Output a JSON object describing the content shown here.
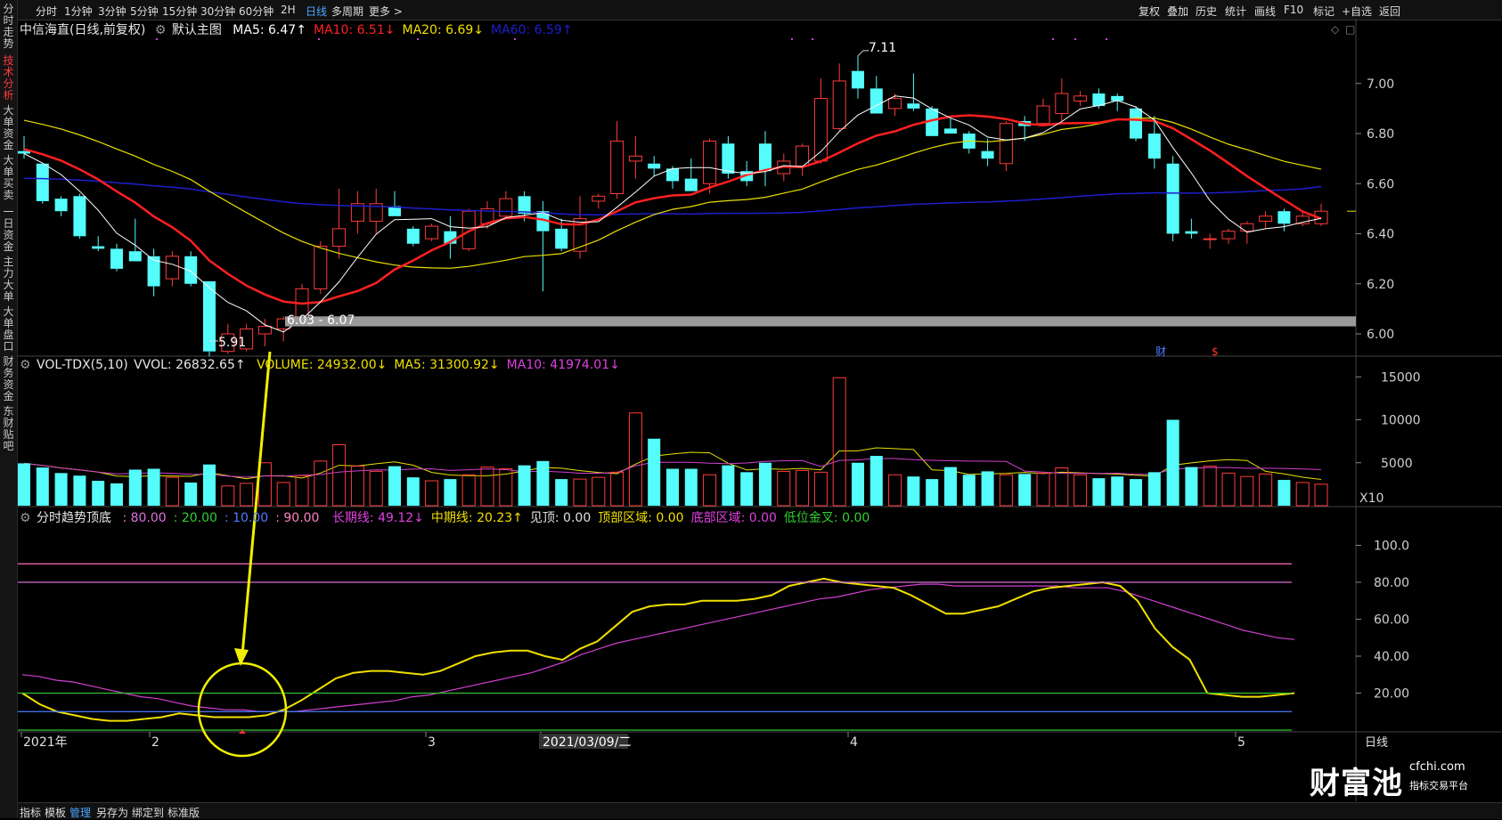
{
  "sidebar": {
    "tabs": [
      {
        "label": "分时走势",
        "active": false
      },
      {
        "label": "技术分析",
        "active": true
      },
      {
        "label": "大单资金",
        "active": false
      },
      {
        "label": "大单买卖",
        "active": false
      },
      {
        "label": "一日资金",
        "active": false
      },
      {
        "label": "主力大单",
        "active": false
      },
      {
        "label": "大单盘口",
        "active": false
      },
      {
        "label": "财务资金",
        "active": false
      },
      {
        "label": "东财贴吧",
        "active": false
      }
    ]
  },
  "toolbar": {
    "periods": [
      "分时",
      "1分钟",
      "3分钟",
      "5分钟",
      "15分钟",
      "30分钟",
      "60分钟",
      "2H",
      "日线",
      "多周期",
      "更多 >"
    ],
    "active_period": "日线",
    "right_buttons": [
      "复权",
      "叠加",
      "历史",
      "统计",
      "画线",
      "F10",
      "标记",
      "+自选",
      "返回"
    ]
  },
  "main_panel": {
    "stock": "中信海直(日线,前复权)",
    "template": "默认主图",
    "ma_labels": [
      {
        "text": "MA5: 6.47↑",
        "color": "#ffffff"
      },
      {
        "text": "MA10: 6.51↓",
        "color": "#ff2020"
      },
      {
        "text": "MA20: 6.69↓",
        "color": "#f0e000"
      },
      {
        "text": "MA60: 6.59↑",
        "color": "#1e1ecc"
      }
    ],
    "price_axis": [
      "7.00",
      "6.80",
      "6.60",
      "6.40",
      "6.20",
      "6.00"
    ],
    "high_label": "7.11",
    "low_label": "5.91",
    "range_label": "6.03 - 6.07",
    "markers": [
      {
        "text": "财",
        "color": "#4d7dff"
      },
      {
        "text": "$",
        "color": "#ff3030"
      }
    ]
  },
  "volume_panel": {
    "name": "VOL-TDX(5,10)",
    "vvol": "VVOL: 26832.65↑",
    "labels": [
      {
        "text": "VOLUME: 24932.00↓",
        "color": "#f0e000"
      },
      {
        "text": "MA5: 31300.92↓",
        "color": "#f0e000"
      },
      {
        "text": "MA10: 41974.01↓",
        "color": "#e040e0"
      }
    ],
    "axis": [
      "15000",
      "10000",
      "5000"
    ],
    "unit": "X10"
  },
  "indicator_panel": {
    "name": "分时趋势顶底",
    "params": [
      {
        "text": ": 80.00",
        "color": "#e070e0"
      },
      {
        "text": ": 20.00",
        "color": "#30d030"
      },
      {
        "text": ": 10.00",
        "color": "#4d7dff"
      },
      {
        "text": ": 90.00",
        "color": "#ff80c0"
      }
    ],
    "labels": [
      {
        "text": "长期线: 49.12↓",
        "color": "#e040e0"
      },
      {
        "text": "中期线: 20.23↑",
        "color": "#f0e000"
      },
      {
        "text": "见顶: 0.00",
        "color": "#e0e0e0"
      },
      {
        "text": "顶部区域: 0.00",
        "color": "#f0e000"
      },
      {
        "text": "底部区域: 0.00",
        "color": "#e040e0"
      },
      {
        "text": "低位金叉: 0.00",
        "color": "#30d030"
      }
    ],
    "axis": [
      "100.0",
      "80.00",
      "60.00",
      "40.00",
      "20.00"
    ]
  },
  "date_axis": {
    "labels": [
      "2021年",
      "2",
      "3",
      "2021/03/09/二",
      "4",
      "5"
    ],
    "period": "日线"
  },
  "bottombar": {
    "items": [
      "指标",
      "模板",
      "管理",
      "另存为",
      "绑定到",
      "标准版"
    ],
    "active": "管理"
  },
  "watermark": {
    "brand": "财富池",
    "site": "cfchi.com",
    "tagline": "指标交易平台"
  },
  "chart_data": {
    "type": "candlestick",
    "candles": [
      {
        "o": 6.73,
        "h": 6.79,
        "l": 6.7,
        "c": 6.72
      },
      {
        "o": 6.68,
        "h": 6.68,
        "l": 6.52,
        "c": 6.53
      },
      {
        "o": 6.54,
        "h": 6.55,
        "l": 6.47,
        "c": 6.49
      },
      {
        "o": 6.55,
        "h": 6.56,
        "l": 6.38,
        "c": 6.39
      },
      {
        "o": 6.35,
        "h": 6.39,
        "l": 6.33,
        "c": 6.34
      },
      {
        "o": 6.34,
        "h": 6.36,
        "l": 6.25,
        "c": 6.26
      },
      {
        "o": 6.33,
        "h": 6.46,
        "l": 6.29,
        "c": 6.29
      },
      {
        "o": 6.31,
        "h": 6.34,
        "l": 6.15,
        "c": 6.19
      },
      {
        "o": 6.22,
        "h": 6.33,
        "l": 6.19,
        "c": 6.31
      },
      {
        "o": 6.31,
        "h": 6.33,
        "l": 6.19,
        "c": 6.2
      },
      {
        "o": 6.21,
        "h": 6.21,
        "l": 5.91,
        "c": 5.93
      },
      {
        "o": 5.93,
        "h": 6.04,
        "l": 5.92,
        "c": 6.0
      },
      {
        "o": 5.94,
        "h": 6.04,
        "l": 5.93,
        "c": 6.02
      },
      {
        "o": 6.0,
        "h": 6.06,
        "l": 5.95,
        "c": 6.03
      },
      {
        "o": 6.02,
        "h": 6.07,
        "l": 5.97,
        "c": 6.06
      },
      {
        "o": 6.06,
        "h": 6.2,
        "l": 6.04,
        "c": 6.18
      },
      {
        "o": 6.18,
        "h": 6.37,
        "l": 6.16,
        "c": 6.35
      },
      {
        "o": 6.35,
        "h": 6.58,
        "l": 6.3,
        "c": 6.42
      },
      {
        "o": 6.45,
        "h": 6.57,
        "l": 6.4,
        "c": 6.52
      },
      {
        "o": 6.45,
        "h": 6.58,
        "l": 6.4,
        "c": 6.52
      },
      {
        "o": 6.51,
        "h": 6.57,
        "l": 6.47,
        "c": 6.47
      },
      {
        "o": 6.42,
        "h": 6.43,
        "l": 6.35,
        "c": 6.36
      },
      {
        "o": 6.38,
        "h": 6.44,
        "l": 6.37,
        "c": 6.43
      },
      {
        "o": 6.41,
        "h": 6.47,
        "l": 6.3,
        "c": 6.36
      },
      {
        "o": 6.34,
        "h": 6.5,
        "l": 6.33,
        "c": 6.49
      },
      {
        "o": 6.44,
        "h": 6.53,
        "l": 6.42,
        "c": 6.5
      },
      {
        "o": 6.47,
        "h": 6.57,
        "l": 6.46,
        "c": 6.54
      },
      {
        "o": 6.55,
        "h": 6.57,
        "l": 6.45,
        "c": 6.48
      },
      {
        "o": 6.49,
        "h": 6.53,
        "l": 6.17,
        "c": 6.41
      },
      {
        "o": 6.42,
        "h": 6.46,
        "l": 6.33,
        "c": 6.34
      },
      {
        "o": 6.33,
        "h": 6.55,
        "l": 6.3,
        "c": 6.46
      },
      {
        "o": 6.53,
        "h": 6.56,
        "l": 6.5,
        "c": 6.55
      },
      {
        "o": 6.56,
        "h": 6.85,
        "l": 6.54,
        "c": 6.77
      },
      {
        "o": 6.69,
        "h": 6.79,
        "l": 6.62,
        "c": 6.71
      },
      {
        "o": 6.68,
        "h": 6.71,
        "l": 6.63,
        "c": 6.66
      },
      {
        "o": 6.66,
        "h": 6.67,
        "l": 6.58,
        "c": 6.61
      },
      {
        "o": 6.62,
        "h": 6.7,
        "l": 6.57,
        "c": 6.57
      },
      {
        "o": 6.6,
        "h": 6.78,
        "l": 6.56,
        "c": 6.77
      },
      {
        "o": 6.76,
        "h": 6.79,
        "l": 6.62,
        "c": 6.64
      },
      {
        "o": 6.65,
        "h": 6.69,
        "l": 6.59,
        "c": 6.61
      },
      {
        "o": 6.76,
        "h": 6.81,
        "l": 6.59,
        "c": 6.65
      },
      {
        "o": 6.64,
        "h": 6.72,
        "l": 6.61,
        "c": 6.69
      },
      {
        "o": 6.67,
        "h": 6.76,
        "l": 6.63,
        "c": 6.75
      },
      {
        "o": 6.69,
        "h": 7.02,
        "l": 6.68,
        "c": 6.94
      },
      {
        "o": 6.82,
        "h": 7.08,
        "l": 6.81,
        "c": 7.01
      },
      {
        "o": 7.05,
        "h": 7.11,
        "l": 6.94,
        "c": 6.98
      },
      {
        "o": 6.98,
        "h": 7.03,
        "l": 6.89,
        "c": 6.88
      },
      {
        "o": 6.9,
        "h": 6.96,
        "l": 6.87,
        "c": 6.94
      },
      {
        "o": 6.92,
        "h": 7.04,
        "l": 6.89,
        "c": 6.9
      },
      {
        "o": 6.9,
        "h": 6.91,
        "l": 6.79,
        "c": 6.79
      },
      {
        "o": 6.82,
        "h": 6.86,
        "l": 6.8,
        "c": 6.8
      },
      {
        "o": 6.8,
        "h": 6.81,
        "l": 6.72,
        "c": 6.74
      },
      {
        "o": 6.73,
        "h": 6.78,
        "l": 6.67,
        "c": 6.7
      },
      {
        "o": 6.68,
        "h": 6.85,
        "l": 6.65,
        "c": 6.84
      },
      {
        "o": 6.85,
        "h": 6.87,
        "l": 6.77,
        "c": 6.83
      },
      {
        "o": 6.84,
        "h": 6.94,
        "l": 6.83,
        "c": 6.91
      },
      {
        "o": 6.88,
        "h": 7.02,
        "l": 6.84,
        "c": 6.96
      },
      {
        "o": 6.93,
        "h": 6.97,
        "l": 6.91,
        "c": 6.95
      },
      {
        "o": 6.96,
        "h": 6.98,
        "l": 6.9,
        "c": 6.91
      },
      {
        "o": 6.95,
        "h": 6.96,
        "l": 6.89,
        "c": 6.93
      },
      {
        "o": 6.9,
        "h": 6.91,
        "l": 6.77,
        "c": 6.78
      },
      {
        "o": 6.8,
        "h": 6.87,
        "l": 6.66,
        "c": 6.7
      },
      {
        "o": 6.68,
        "h": 6.71,
        "l": 6.37,
        "c": 6.4
      },
      {
        "o": 6.41,
        "h": 6.46,
        "l": 6.38,
        "c": 6.4
      },
      {
        "o": 6.38,
        "h": 6.4,
        "l": 6.34,
        "c": 6.38
      },
      {
        "o": 6.38,
        "h": 6.42,
        "l": 6.36,
        "c": 6.41
      },
      {
        "o": 6.41,
        "h": 6.45,
        "l": 6.36,
        "c": 6.44
      },
      {
        "o": 6.45,
        "h": 6.49,
        "l": 6.42,
        "c": 6.47
      },
      {
        "o": 6.49,
        "h": 6.5,
        "l": 6.41,
        "c": 6.44
      },
      {
        "o": 6.44,
        "h": 6.49,
        "l": 6.43,
        "c": 6.47
      },
      {
        "o": 6.44,
        "h": 6.52,
        "l": 6.43,
        "c": 6.49
      }
    ],
    "volume": [
      4932,
      4450,
      3800,
      3500,
      2900,
      2600,
      4200,
      4300,
      3300,
      2700,
      4800,
      2300,
      2600,
      5000,
      2700,
      3500,
      5200,
      7100,
      4600,
      4000,
      4600,
      3300,
      2900,
      3100,
      3600,
      4500,
      4300,
      4700,
      5200,
      3100,
      3100,
      3300,
      3900,
      10800,
      7800,
      4300,
      4300,
      3600,
      4700,
      3900,
      5000,
      4000,
      4100,
      3900,
      14900,
      5000,
      5800,
      3600,
      3400,
      3100,
      4500,
      3600,
      4000,
      3600,
      3700,
      3800,
      4400,
      3600,
      3200,
      3400,
      3100,
      3900,
      10000,
      4500,
      4600,
      3800,
      3400,
      3700,
      3000,
      2700,
      2500
    ],
    "series_names_from_labels": [
      "MA5",
      "MA10",
      "MA20",
      "MA60"
    ],
    "ylim_price": [
      5.91,
      7.11
    ]
  }
}
